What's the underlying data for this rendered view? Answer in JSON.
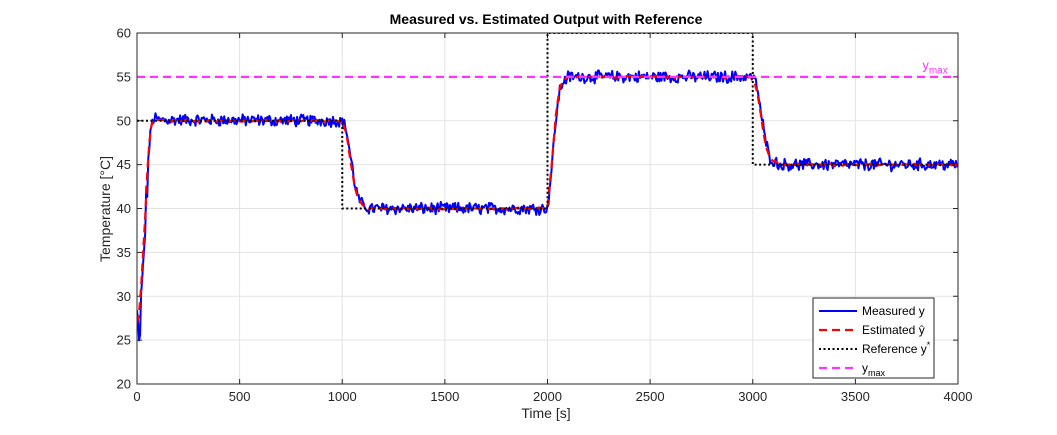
{
  "chart_data": {
    "type": "line",
    "title": "Measured vs. Estimated Output with Reference",
    "xlabel": "Time [s]",
    "ylabel": "Temperature [°C]",
    "xlim": [
      0,
      4000
    ],
    "ylim": [
      20,
      60
    ],
    "x_ticks": [
      0,
      500,
      1000,
      1500,
      2000,
      2500,
      3000,
      3500,
      4000
    ],
    "y_ticks": [
      20,
      25,
      30,
      35,
      40,
      45,
      50,
      55,
      60
    ],
    "grid": true,
    "legend_position": "bottom-right",
    "series": [
      {
        "name": "Measured y",
        "color": "#0000ff",
        "style": "solid",
        "noise_amplitude": 0.6,
        "x": [
          0,
          10,
          20,
          30,
          40,
          50,
          60,
          70,
          80,
          90,
          100,
          1000,
          1020,
          1040,
          1060,
          1080,
          1100,
          1130,
          2000,
          2020,
          2040,
          2060,
          2080,
          2100,
          2130,
          3000,
          3020,
          3040,
          3060,
          3080,
          3100,
          3130,
          4000
        ],
        "y": [
          28,
          24,
          29,
          33,
          38,
          43,
          47,
          49.5,
          50.2,
          50.3,
          50.1,
          50,
          49,
          46,
          43,
          41,
          40.4,
          40,
          40,
          44.5,
          50,
          53.5,
          54.6,
          55,
          55,
          55,
          54,
          51,
          48,
          46,
          45.4,
          45,
          45
        ]
      },
      {
        "name": "Estimated ŷ",
        "color": "#ff0000",
        "style": "dashed",
        "x": [
          0,
          10,
          20,
          30,
          40,
          50,
          60,
          70,
          80,
          90,
          100,
          1000,
          1020,
          1040,
          1060,
          1080,
          1100,
          1130,
          2000,
          2020,
          2040,
          2060,
          2080,
          2100,
          2130,
          3000,
          3020,
          3040,
          3060,
          3080,
          3100,
          3130,
          4000
        ],
        "y": [
          27,
          28,
          31,
          35,
          39,
          44,
          47.5,
          49.5,
          50.2,
          50.2,
          50,
          50,
          48.5,
          45.5,
          42.5,
          41,
          40.4,
          40,
          40,
          45,
          50.5,
          53.8,
          54.7,
          55,
          55,
          55,
          53.5,
          50.5,
          47.5,
          46,
          45.4,
          45,
          45
        ]
      },
      {
        "name": "Reference y*",
        "color": "#000000",
        "style": "dotted",
        "x": [
          0,
          1000,
          1000,
          2000,
          2000,
          3000,
          3000,
          4000
        ],
        "y": [
          50,
          50,
          40,
          40,
          60,
          60,
          45,
          45
        ]
      },
      {
        "name": "ymax",
        "color": "#ff33ff",
        "style": "dashed",
        "x": [
          0,
          4000
        ],
        "y": [
          55,
          55
        ]
      }
    ],
    "annotations": [
      {
        "text": "y",
        "subscript": "max",
        "x": 3950,
        "y": 55.6,
        "color": "#ff33ff"
      }
    ],
    "legend": [
      {
        "label": "Measured y"
      },
      {
        "label": "Estimated ŷ"
      },
      {
        "label": "Reference y",
        "superscript": "*"
      },
      {
        "label": "y",
        "subscript": "max"
      }
    ]
  }
}
